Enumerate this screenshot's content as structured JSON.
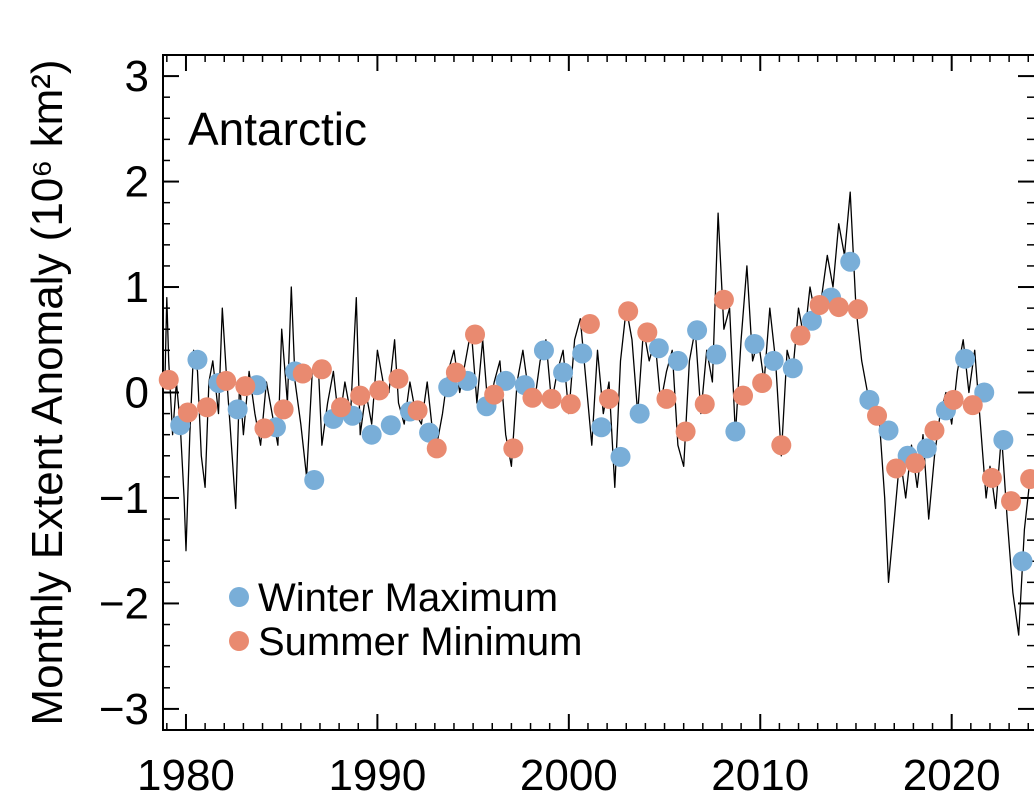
{
  "chart_data": {
    "type": "scatter",
    "title": "Antarctic",
    "xlabel": "",
    "ylabel": "Monthly Extent Anomaly (10⁶ km²)",
    "xlim": [
      1978.8,
      2024.3
    ],
    "ylim": [
      -3.2,
      3.2
    ],
    "xticks": [
      1980,
      1990,
      2000,
      2010,
      2020
    ],
    "yticks": [
      3,
      2,
      1,
      0,
      -1,
      -2,
      -3
    ],
    "ytick_labels": [
      "3",
      "2",
      "1",
      "0",
      "−1",
      "−2",
      "−3"
    ],
    "grid": false,
    "legend_position": "bottom-left",
    "monthly_anomaly": [
      [
        1978.9,
        0.1
      ],
      [
        1979.0,
        0.9
      ],
      [
        1979.1,
        0.3
      ],
      [
        1979.3,
        -0.4
      ],
      [
        1979.5,
        0.1
      ],
      [
        1979.7,
        -0.3
      ],
      [
        1979.9,
        -1.0
      ],
      [
        1980.0,
        -1.5
      ],
      [
        1980.2,
        -0.4
      ],
      [
        1980.4,
        0.4
      ],
      [
        1980.6,
        0.2
      ],
      [
        1980.8,
        -0.6
      ],
      [
        1981.0,
        -0.9
      ],
      [
        1981.2,
        0.1
      ],
      [
        1981.4,
        0.3
      ],
      [
        1981.7,
        -0.2
      ],
      [
        1981.9,
        0.8
      ],
      [
        1982.1,
        0.2
      ],
      [
        1982.3,
        -0.3
      ],
      [
        1982.6,
        -1.1
      ],
      [
        1982.8,
        0.1
      ],
      [
        1983.0,
        -0.4
      ],
      [
        1983.3,
        0.2
      ],
      [
        1983.6,
        -0.2
      ],
      [
        1983.9,
        -0.5
      ],
      [
        1984.2,
        0.1
      ],
      [
        1984.5,
        -0.2
      ],
      [
        1984.8,
        -0.5
      ],
      [
        1985.0,
        0.6
      ],
      [
        1985.3,
        -0.1
      ],
      [
        1985.5,
        1.0
      ],
      [
        1985.7,
        0.1
      ],
      [
        1986.0,
        -0.3
      ],
      [
        1986.3,
        -0.8
      ],
      [
        1986.6,
        0.2
      ],
      [
        1986.9,
        0.3
      ],
      [
        1987.1,
        -0.5
      ],
      [
        1987.4,
        -0.1
      ],
      [
        1987.7,
        0.2
      ],
      [
        1988.0,
        -0.3
      ],
      [
        1988.3,
        0.1
      ],
      [
        1988.6,
        -0.2
      ],
      [
        1988.9,
        0.9
      ],
      [
        1989.1,
        -0.4
      ],
      [
        1989.4,
        0.0
      ],
      [
        1989.7,
        -0.3
      ],
      [
        1990.0,
        0.4
      ],
      [
        1990.3,
        0.1
      ],
      [
        1990.6,
        0.0
      ],
      [
        1990.9,
        0.5
      ],
      [
        1991.1,
        -0.1
      ],
      [
        1991.4,
        -0.3
      ],
      [
        1991.7,
        0.1
      ],
      [
        1992.0,
        -0.2
      ],
      [
        1992.3,
        -0.3
      ],
      [
        1992.6,
        0.1
      ],
      [
        1992.9,
        -0.4
      ],
      [
        1993.1,
        -0.5
      ],
      [
        1993.4,
        -0.2
      ],
      [
        1993.7,
        0.2
      ],
      [
        1994.0,
        0.4
      ],
      [
        1994.3,
        0.0
      ],
      [
        1994.6,
        0.3
      ],
      [
        1994.9,
        0.6
      ],
      [
        1995.2,
        -0.1
      ],
      [
        1995.5,
        0.5
      ],
      [
        1995.8,
        -0.2
      ],
      [
        1996.1,
        0.1
      ],
      [
        1996.4,
        0.3
      ],
      [
        1996.7,
        -0.4
      ],
      [
        1997.0,
        -0.7
      ],
      [
        1997.3,
        0.1
      ],
      [
        1997.6,
        0.4
      ],
      [
        1997.9,
        0.0
      ],
      [
        1998.2,
        -0.1
      ],
      [
        1998.5,
        0.3
      ],
      [
        1998.8,
        0.5
      ],
      [
        1999.1,
        -0.1
      ],
      [
        1999.4,
        0.2
      ],
      [
        1999.7,
        0.4
      ],
      [
        2000.0,
        -0.2
      ],
      [
        2000.3,
        0.5
      ],
      [
        2000.6,
        0.7
      ],
      [
        2000.9,
        0.1
      ],
      [
        2001.2,
        -0.5
      ],
      [
        2001.5,
        0.4
      ],
      [
        2001.8,
        -0.2
      ],
      [
        2002.1,
        0.1
      ],
      [
        2002.4,
        -0.9
      ],
      [
        2002.7,
        0.3
      ],
      [
        2003.0,
        0.8
      ],
      [
        2003.3,
        0.5
      ],
      [
        2003.6,
        -0.2
      ],
      [
        2003.9,
        0.6
      ],
      [
        2004.2,
        0.3
      ],
      [
        2004.5,
        0.5
      ],
      [
        2004.8,
        -0.1
      ],
      [
        2005.1,
        0.2
      ],
      [
        2005.4,
        0.4
      ],
      [
        2005.7,
        -0.5
      ],
      [
        2006.0,
        -0.7
      ],
      [
        2006.3,
        0.3
      ],
      [
        2006.6,
        0.6
      ],
      [
        2006.9,
        -0.2
      ],
      [
        2007.2,
        0.4
      ],
      [
        2007.5,
        0.1
      ],
      [
        2007.8,
        1.7
      ],
      [
        2008.1,
        0.6
      ],
      [
        2008.4,
        0.8
      ],
      [
        2008.7,
        -0.4
      ],
      [
        2009.0,
        0.5
      ],
      [
        2009.3,
        1.2
      ],
      [
        2009.6,
        0.3
      ],
      [
        2009.9,
        0.5
      ],
      [
        2010.2,
        0.1
      ],
      [
        2010.5,
        0.8
      ],
      [
        2010.8,
        0.3
      ],
      [
        2011.1,
        -0.6
      ],
      [
        2011.4,
        0.4
      ],
      [
        2011.7,
        0.2
      ],
      [
        2012.0,
        0.8
      ],
      [
        2012.3,
        0.5
      ],
      [
        2012.6,
        1.0
      ],
      [
        2012.9,
        0.7
      ],
      [
        2013.2,
        0.9
      ],
      [
        2013.5,
        1.3
      ],
      [
        2013.8,
        1.0
      ],
      [
        2014.1,
        1.6
      ],
      [
        2014.4,
        1.3
      ],
      [
        2014.7,
        1.9
      ],
      [
        2015.0,
        0.8
      ],
      [
        2015.3,
        0.3
      ],
      [
        2015.6,
        0.0
      ],
      [
        2015.9,
        -0.3
      ],
      [
        2016.2,
        -0.2
      ],
      [
        2016.5,
        -1.0
      ],
      [
        2016.7,
        -1.8
      ],
      [
        2017.0,
        -1.2
      ],
      [
        2017.3,
        -0.6
      ],
      [
        2017.6,
        -1.0
      ],
      [
        2017.9,
        -0.5
      ],
      [
        2018.2,
        -0.9
      ],
      [
        2018.5,
        -0.4
      ],
      [
        2018.8,
        -1.2
      ],
      [
        2019.1,
        -0.6
      ],
      [
        2019.4,
        -0.2
      ],
      [
        2019.7,
        0.0
      ],
      [
        2020.0,
        -0.3
      ],
      [
        2020.3,
        0.2
      ],
      [
        2020.6,
        0.5
      ],
      [
        2020.9,
        0.0
      ],
      [
        2021.2,
        0.4
      ],
      [
        2021.5,
        -0.3
      ],
      [
        2021.8,
        -1.0
      ],
      [
        2022.0,
        -0.7
      ],
      [
        2022.3,
        -1.1
      ],
      [
        2022.6,
        -0.4
      ],
      [
        2022.9,
        -1.2
      ],
      [
        2023.2,
        -1.9
      ],
      [
        2023.5,
        -2.3
      ],
      [
        2023.8,
        -1.3
      ],
      [
        2024.1,
        -0.8
      ]
    ],
    "series": [
      {
        "name": "Winter Maximum",
        "color": "#79aed8",
        "points": [
          [
            1979.7,
            -0.31
          ],
          [
            1980.6,
            0.31
          ],
          [
            1981.7,
            0.09
          ],
          [
            1982.7,
            -0.16
          ],
          [
            1983.7,
            0.07
          ],
          [
            1984.7,
            -0.33
          ],
          [
            1985.7,
            0.2
          ],
          [
            1986.7,
            -0.83
          ],
          [
            1987.7,
            -0.25
          ],
          [
            1988.7,
            -0.22
          ],
          [
            1989.7,
            -0.4
          ],
          [
            1990.7,
            -0.31
          ],
          [
            1991.7,
            -0.18
          ],
          [
            1992.7,
            -0.38
          ],
          [
            1993.7,
            0.05
          ],
          [
            1994.7,
            0.11
          ],
          [
            1995.7,
            -0.13
          ],
          [
            1996.7,
            0.11
          ],
          [
            1997.7,
            0.07
          ],
          [
            1998.7,
            0.4
          ],
          [
            1999.7,
            0.19
          ],
          [
            2000.7,
            0.37
          ],
          [
            2001.7,
            -0.33
          ],
          [
            2002.7,
            -0.61
          ],
          [
            2003.7,
            -0.2
          ],
          [
            2004.7,
            0.42
          ],
          [
            2005.7,
            0.3
          ],
          [
            2006.7,
            0.59
          ],
          [
            2007.7,
            0.36
          ],
          [
            2008.7,
            -0.37
          ],
          [
            2009.7,
            0.46
          ],
          [
            2010.7,
            0.3
          ],
          [
            2011.7,
            0.23
          ],
          [
            2012.7,
            0.68
          ],
          [
            2013.7,
            0.9
          ],
          [
            2014.7,
            1.24
          ],
          [
            2015.7,
            -0.07
          ],
          [
            2016.7,
            -0.36
          ],
          [
            2017.7,
            -0.6
          ],
          [
            2018.7,
            -0.53
          ],
          [
            2019.7,
            -0.17
          ],
          [
            2020.7,
            0.32
          ],
          [
            2021.7,
            0.0
          ],
          [
            2022.7,
            -0.45
          ],
          [
            2023.7,
            -1.6
          ]
        ]
      },
      {
        "name": "Summer Minimum",
        "color": "#e98a70",
        "points": [
          [
            1979.1,
            0.12
          ],
          [
            1980.1,
            -0.19
          ],
          [
            1981.1,
            -0.14
          ],
          [
            1982.1,
            0.11
          ],
          [
            1983.1,
            0.06
          ],
          [
            1984.1,
            -0.34
          ],
          [
            1985.1,
            -0.16
          ],
          [
            1986.1,
            0.18
          ],
          [
            1987.1,
            0.22
          ],
          [
            1988.1,
            -0.14
          ],
          [
            1989.1,
            -0.03
          ],
          [
            1990.1,
            0.02
          ],
          [
            1991.1,
            0.13
          ],
          [
            1992.1,
            -0.17
          ],
          [
            1993.1,
            -0.53
          ],
          [
            1994.1,
            0.19
          ],
          [
            1995.1,
            0.55
          ],
          [
            1996.1,
            -0.02
          ],
          [
            1997.1,
            -0.53
          ],
          [
            1998.1,
            -0.05
          ],
          [
            1999.1,
            -0.06
          ],
          [
            2000.1,
            -0.11
          ],
          [
            2001.1,
            0.65
          ],
          [
            2002.1,
            -0.06
          ],
          [
            2003.1,
            0.77
          ],
          [
            2004.1,
            0.57
          ],
          [
            2005.1,
            -0.06
          ],
          [
            2006.1,
            -0.37
          ],
          [
            2007.1,
            -0.11
          ],
          [
            2008.1,
            0.88
          ],
          [
            2009.1,
            -0.03
          ],
          [
            2010.1,
            0.09
          ],
          [
            2011.1,
            -0.5
          ],
          [
            2012.1,
            0.54
          ],
          [
            2013.1,
            0.83
          ],
          [
            2014.1,
            0.81
          ],
          [
            2015.1,
            0.79
          ],
          [
            2016.1,
            -0.22
          ],
          [
            2017.1,
            -0.72
          ],
          [
            2018.1,
            -0.67
          ],
          [
            2019.1,
            -0.36
          ],
          [
            2020.1,
            -0.07
          ],
          [
            2021.1,
            -0.12
          ],
          [
            2022.1,
            -0.81
          ],
          [
            2023.1,
            -1.03
          ],
          [
            2024.1,
            -0.82
          ]
        ]
      }
    ],
    "line_color": "#000000"
  }
}
